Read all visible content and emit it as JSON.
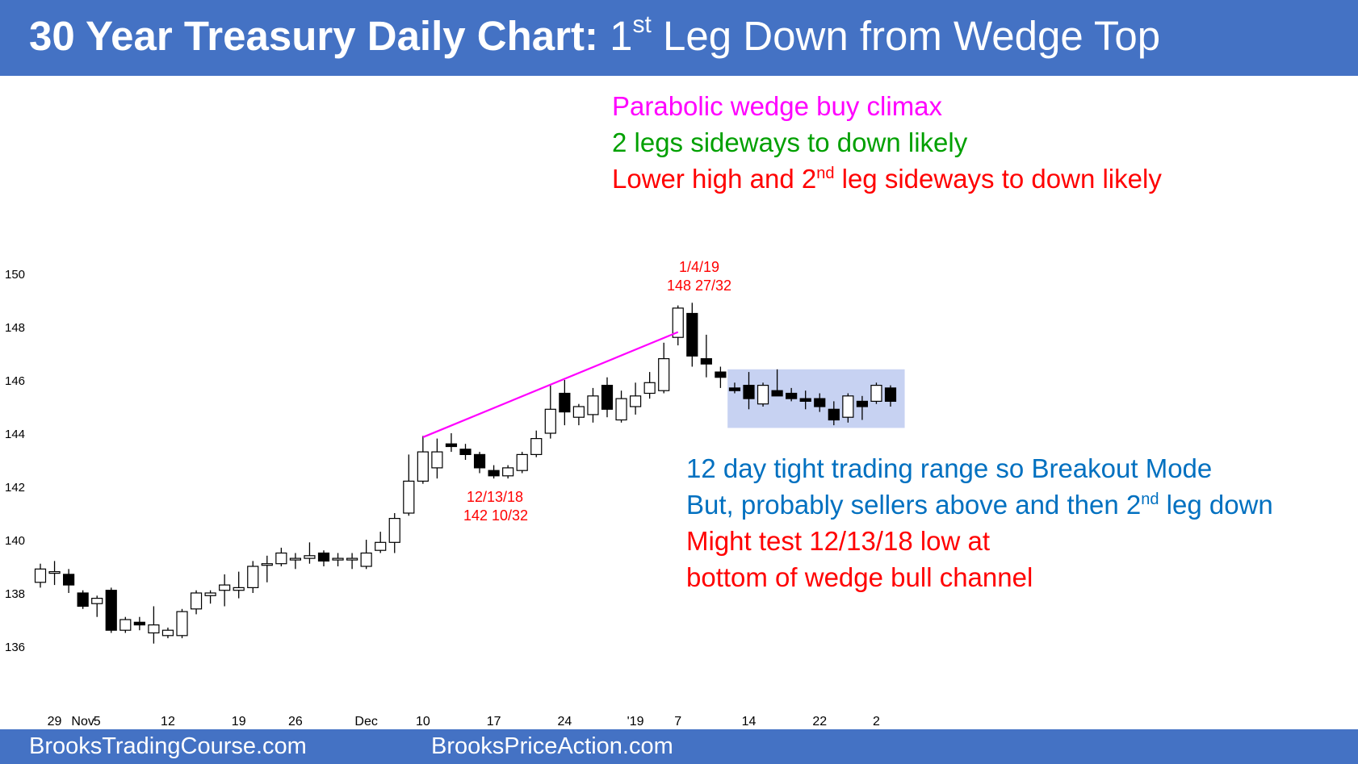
{
  "header": {
    "title_bold": "30 Year Treasury Daily Chart:",
    "title_pre": " 1",
    "title_sup": "st",
    "title_post": " Leg Down from Wedge Top"
  },
  "footer": {
    "left_text": "BrooksTradingCourse.com",
    "right_text": "BrooksPriceAction.com"
  },
  "annotations": {
    "climax": "Parabolic wedge buy climax",
    "two_legs": "2 legs sideways to down likely",
    "lower_high_pre": "Lower high and 2",
    "lower_high_sup": "nd",
    "lower_high_post": " leg sideways to down likely",
    "range": "12 day tight trading range so Breakout Mode",
    "sellers_pre": "But, probably sellers above and then 2",
    "sellers_sup": "nd",
    "sellers_post": " leg down",
    "test_line1": "Might test 12/13/18 low at",
    "test_line2": "bottom of wedge bull channel",
    "high_date": "1/4/19",
    "high_price": "148 27/32",
    "low_date": "12/13/18",
    "low_price": "142 10/32"
  },
  "colors": {
    "header_bg": "#4472c4",
    "wedge_line": "#ff00ff",
    "range_box": "#c7d2f2",
    "red": "#ff0000",
    "green": "#00a000",
    "blue": "#0070c0"
  },
  "chart_data": {
    "type": "candlestick",
    "title": "",
    "ylim": [
      135,
      151
    ],
    "y_ticks": [
      136,
      138,
      140,
      142,
      144,
      146,
      148,
      150
    ],
    "x_ticks": [
      {
        "label": "29",
        "index": 1
      },
      {
        "label": "Nov",
        "index": 3
      },
      {
        "label": "5",
        "index": 4
      },
      {
        "label": "12",
        "index": 9
      },
      {
        "label": "19",
        "index": 14
      },
      {
        "label": "26",
        "index": 18
      },
      {
        "label": "Dec",
        "index": 23
      },
      {
        "label": "10",
        "index": 27
      },
      {
        "label": "17",
        "index": 32
      },
      {
        "label": "24",
        "index": 37
      },
      {
        "label": "'19",
        "index": 42
      },
      {
        "label": "7",
        "index": 45
      },
      {
        "label": "14",
        "index": 50
      },
      {
        "label": "22",
        "index": 55
      },
      {
        "label": "2",
        "index": 59
      }
    ],
    "candles": [
      {
        "o": 138.4,
        "h": 139.1,
        "l": 138.2,
        "c": 138.9
      },
      {
        "o": 138.8,
        "h": 139.2,
        "l": 138.3,
        "c": 138.8
      },
      {
        "o": 138.7,
        "h": 138.9,
        "l": 138.0,
        "c": 138.3
      },
      {
        "o": 138.0,
        "h": 138.1,
        "l": 137.4,
        "c": 137.5
      },
      {
        "o": 137.6,
        "h": 137.9,
        "l": 137.1,
        "c": 137.8
      },
      {
        "o": 138.1,
        "h": 138.2,
        "l": 136.5,
        "c": 136.6
      },
      {
        "o": 136.6,
        "h": 137.1,
        "l": 136.5,
        "c": 137.0
      },
      {
        "o": 136.9,
        "h": 137.1,
        "l": 136.6,
        "c": 136.8
      },
      {
        "o": 136.5,
        "h": 137.5,
        "l": 136.1,
        "c": 136.8
      },
      {
        "o": 136.4,
        "h": 136.7,
        "l": 136.3,
        "c": 136.6
      },
      {
        "o": 136.4,
        "h": 137.4,
        "l": 136.3,
        "c": 137.3
      },
      {
        "o": 137.4,
        "h": 138.1,
        "l": 137.2,
        "c": 138.0
      },
      {
        "o": 137.9,
        "h": 138.1,
        "l": 137.6,
        "c": 138.0
      },
      {
        "o": 138.1,
        "h": 138.7,
        "l": 137.5,
        "c": 138.3
      },
      {
        "o": 138.1,
        "h": 138.8,
        "l": 137.8,
        "c": 138.2
      },
      {
        "o": 138.2,
        "h": 139.2,
        "l": 138.0,
        "c": 139.0
      },
      {
        "o": 139.1,
        "h": 139.4,
        "l": 138.4,
        "c": 139.1
      },
      {
        "o": 139.1,
        "h": 139.7,
        "l": 139.0,
        "c": 139.5
      },
      {
        "o": 139.3,
        "h": 139.5,
        "l": 138.9,
        "c": 139.3
      },
      {
        "o": 139.3,
        "h": 139.9,
        "l": 139.1,
        "c": 139.4
      },
      {
        "o": 139.5,
        "h": 139.6,
        "l": 139.0,
        "c": 139.2
      },
      {
        "o": 139.3,
        "h": 139.5,
        "l": 139.0,
        "c": 139.3
      },
      {
        "o": 139.3,
        "h": 139.5,
        "l": 138.9,
        "c": 139.3
      },
      {
        "o": 139.0,
        "h": 140.0,
        "l": 138.9,
        "c": 139.5
      },
      {
        "o": 139.6,
        "h": 140.3,
        "l": 139.5,
        "c": 139.9
      },
      {
        "o": 139.9,
        "h": 141.0,
        "l": 139.5,
        "c": 140.8
      },
      {
        "o": 141.0,
        "h": 143.2,
        "l": 140.9,
        "c": 142.2
      },
      {
        "o": 142.2,
        "h": 143.9,
        "l": 142.1,
        "c": 143.3
      },
      {
        "o": 142.7,
        "h": 143.8,
        "l": 142.3,
        "c": 143.3
      },
      {
        "o": 143.6,
        "h": 144.0,
        "l": 143.3,
        "c": 143.5
      },
      {
        "o": 143.4,
        "h": 143.6,
        "l": 143.0,
        "c": 143.2
      },
      {
        "o": 143.2,
        "h": 143.3,
        "l": 142.5,
        "c": 142.7
      },
      {
        "o": 142.6,
        "h": 142.8,
        "l": 142.3,
        "c": 142.4
      },
      {
        "o": 142.4,
        "h": 142.8,
        "l": 142.3,
        "c": 142.7
      },
      {
        "o": 142.6,
        "h": 143.3,
        "l": 142.5,
        "c": 143.2
      },
      {
        "o": 143.2,
        "h": 144.1,
        "l": 143.1,
        "c": 143.8
      },
      {
        "o": 144.0,
        "h": 145.8,
        "l": 143.8,
        "c": 144.9
      },
      {
        "o": 145.5,
        "h": 146.0,
        "l": 144.3,
        "c": 144.8
      },
      {
        "o": 144.6,
        "h": 145.1,
        "l": 144.3,
        "c": 145.0
      },
      {
        "o": 144.7,
        "h": 145.7,
        "l": 144.4,
        "c": 145.4
      },
      {
        "o": 145.8,
        "h": 146.1,
        "l": 144.6,
        "c": 144.9
      },
      {
        "o": 144.5,
        "h": 145.6,
        "l": 144.4,
        "c": 145.3
      },
      {
        "o": 145.0,
        "h": 145.9,
        "l": 144.7,
        "c": 145.4
      },
      {
        "o": 145.5,
        "h": 146.3,
        "l": 145.3,
        "c": 145.9
      },
      {
        "o": 145.6,
        "h": 147.4,
        "l": 145.5,
        "c": 146.8
      },
      {
        "o": 147.6,
        "h": 148.8,
        "l": 147.3,
        "c": 148.7
      },
      {
        "o": 148.5,
        "h": 148.9,
        "l": 146.5,
        "c": 146.9
      },
      {
        "o": 146.8,
        "h": 147.7,
        "l": 146.1,
        "c": 146.6
      },
      {
        "o": 146.3,
        "h": 146.5,
        "l": 145.7,
        "c": 146.1
      },
      {
        "o": 145.7,
        "h": 145.9,
        "l": 145.5,
        "c": 145.6
      },
      {
        "o": 145.8,
        "h": 146.3,
        "l": 144.9,
        "c": 145.3
      },
      {
        "o": 145.1,
        "h": 145.9,
        "l": 145.0,
        "c": 145.8
      },
      {
        "o": 145.6,
        "h": 146.4,
        "l": 145.4,
        "c": 145.4
      },
      {
        "o": 145.5,
        "h": 145.7,
        "l": 145.2,
        "c": 145.3
      },
      {
        "o": 145.3,
        "h": 145.6,
        "l": 144.9,
        "c": 145.2
      },
      {
        "o": 145.3,
        "h": 145.5,
        "l": 144.8,
        "c": 145.0
      },
      {
        "o": 144.9,
        "h": 145.2,
        "l": 144.3,
        "c": 144.5
      },
      {
        "o": 144.6,
        "h": 145.5,
        "l": 144.4,
        "c": 145.4
      },
      {
        "o": 145.2,
        "h": 145.4,
        "l": 144.5,
        "c": 145.0
      },
      {
        "o": 145.2,
        "h": 145.9,
        "l": 145.1,
        "c": 145.8
      },
      {
        "o": 145.7,
        "h": 145.8,
        "l": 145.0,
        "c": 145.2
      }
    ],
    "wedge_line": {
      "from": {
        "index": 27,
        "price": 143.85
      },
      "to": {
        "index": 45,
        "price": 147.8
      }
    },
    "range_box": {
      "from_index": 48.5,
      "to_index": 61.0,
      "low": 144.2,
      "high": 146.4
    }
  }
}
